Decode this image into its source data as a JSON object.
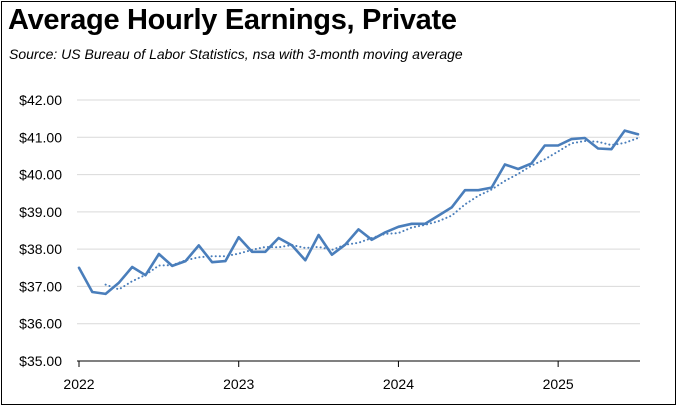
{
  "chart_data": {
    "type": "line",
    "title": "Average Hourly Earnings, Private",
    "subtitle": "Source:  US Bureau of Labor Statistics, nsa with 3-month moving average",
    "xlabel": "",
    "ylabel": "",
    "ylim": [
      35,
      42
    ],
    "y_ticks": [
      35,
      36,
      37,
      38,
      39,
      40,
      41,
      42
    ],
    "y_tick_labels": [
      "$35.00",
      "$36.00",
      "$37.00",
      "$38.00",
      "$39.00",
      "$40.00",
      "$41.00",
      "$42.00"
    ],
    "x_tick_labels": [
      "2022",
      "2023",
      "2024",
      "2025"
    ],
    "grid": true,
    "legend": "none",
    "x": [
      "2022-01",
      "2022-02",
      "2022-03",
      "2022-04",
      "2022-05",
      "2022-06",
      "2022-07",
      "2022-08",
      "2022-09",
      "2022-10",
      "2022-11",
      "2022-12",
      "2023-01",
      "2023-02",
      "2023-03",
      "2023-04",
      "2023-05",
      "2023-06",
      "2023-07",
      "2023-08",
      "2023-09",
      "2023-10",
      "2023-11",
      "2023-12",
      "2024-01",
      "2024-02",
      "2024-03",
      "2024-04",
      "2024-05",
      "2024-06",
      "2024-07",
      "2024-08",
      "2024-09",
      "2024-10",
      "2024-11",
      "2024-12",
      "2025-01",
      "2025-02",
      "2025-03",
      "2025-04",
      "2025-05",
      "2025-06",
      "2025-07"
    ],
    "series": [
      {
        "style": "solid",
        "color": "#4a7ebb",
        "values": [
          37.5,
          36.85,
          36.8,
          37.1,
          37.52,
          37.3,
          37.87,
          37.55,
          37.68,
          38.1,
          37.65,
          37.68,
          38.32,
          37.93,
          37.93,
          38.3,
          38.1,
          37.7,
          38.38,
          37.85,
          38.12,
          38.53,
          38.25,
          38.45,
          38.6,
          38.68,
          38.68,
          38.9,
          39.12,
          39.58,
          39.58,
          39.65,
          40.27,
          40.15,
          40.3,
          40.78,
          40.78,
          40.95,
          40.98,
          40.7,
          40.68,
          41.18,
          41.08
        ]
      },
      {
        "style": "dotted",
        "color": "#4a7ebb",
        "values": [
          null,
          null,
          37.05,
          36.92,
          37.14,
          37.31,
          37.56,
          37.57,
          37.7,
          37.78,
          37.81,
          37.81,
          37.88,
          37.98,
          38.06,
          38.05,
          38.11,
          38.03,
          38.06,
          37.98,
          38.12,
          38.17,
          38.3,
          38.41,
          38.43,
          38.58,
          38.65,
          38.75,
          38.9,
          39.2,
          39.43,
          39.6,
          39.83,
          40.02,
          40.24,
          40.41,
          40.62,
          40.84,
          40.9,
          40.88,
          40.79,
          40.85,
          40.98
        ]
      }
    ]
  }
}
